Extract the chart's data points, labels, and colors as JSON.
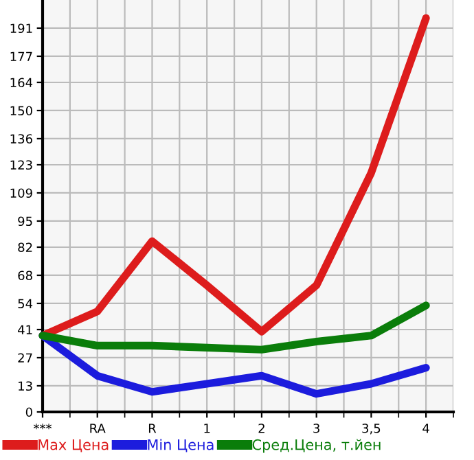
{
  "chart_data": {
    "type": "line",
    "categories": [
      "***",
      "RA",
      "R",
      "1",
      "2",
      "3",
      "3,5",
      "4"
    ],
    "series": [
      {
        "name": "Max Цена",
        "color": "#dd1c1c",
        "values": [
          38,
          50,
          85,
          63,
          40,
          63,
          119,
          196
        ]
      },
      {
        "name": "Min Цена",
        "color": "#1c1cdd",
        "values": [
          38,
          18,
          10,
          14,
          18,
          9,
          14,
          22
        ]
      },
      {
        "name": "Сред.Цена, т.йен",
        "color": "#0a7d0a",
        "values": [
          38,
          33,
          33,
          32,
          31,
          35,
          38,
          53
        ]
      }
    ],
    "ylim": [
      0,
      205
    ],
    "yticks": [
      0,
      13,
      27,
      41,
      54,
      68,
      82,
      95,
      109,
      123,
      136,
      150,
      164,
      177,
      191
    ],
    "grid": true,
    "legend": "bottom",
    "marker": "none",
    "line_style": "solid"
  }
}
